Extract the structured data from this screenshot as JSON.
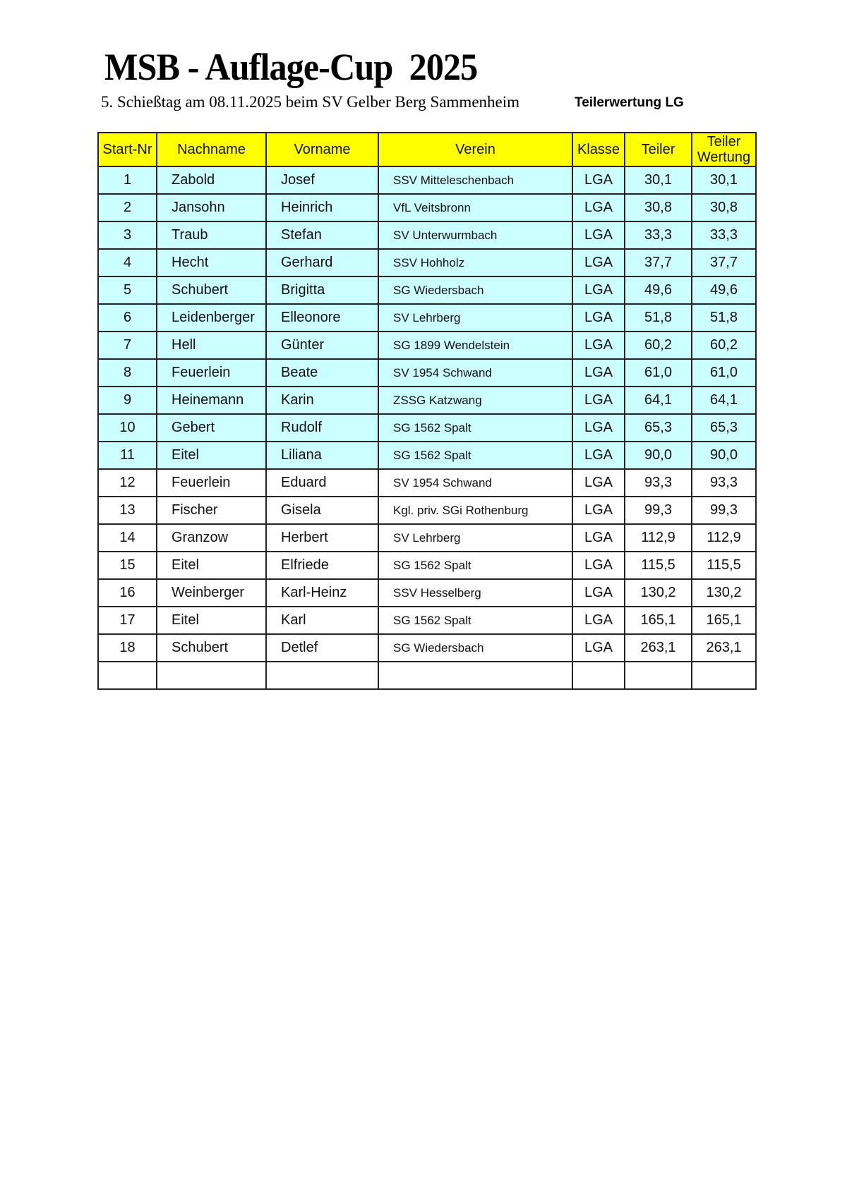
{
  "header": {
    "title": "MSB - Auflage-Cup  2025",
    "subtitle": "5. Schießtag am 08.11.2025 beim SV Gelber Berg Sammenheim",
    "category": "Teilerwertung LG"
  },
  "colors": {
    "header_bg": "#ffff00",
    "highlight_bg": "#ccffff"
  },
  "table": {
    "columns": [
      "Start-Nr",
      "Nachname",
      "Vorname",
      "Verein",
      "Klasse",
      "Teiler",
      "Teiler Wertung"
    ],
    "highlighted_rows": 11,
    "rows": [
      [
        "1",
        "Zabold",
        "Josef",
        "SSV Mitteleschenbach",
        "LGA",
        "30,1",
        "30,1"
      ],
      [
        "2",
        "Jansohn",
        "Heinrich",
        "VfL Veitsbronn",
        "LGA",
        "30,8",
        "30,8"
      ],
      [
        "3",
        "Traub",
        "Stefan",
        "SV Unterwurmbach",
        "LGA",
        "33,3",
        "33,3"
      ],
      [
        "4",
        "Hecht",
        "Gerhard",
        "SSV Hohholz",
        "LGA",
        "37,7",
        "37,7"
      ],
      [
        "5",
        "Schubert",
        "Brigitta",
        "SG Wiedersbach",
        "LGA",
        "49,6",
        "49,6"
      ],
      [
        "6",
        "Leidenberger",
        "Elleonore",
        "SV Lehrberg",
        "LGA",
        "51,8",
        "51,8"
      ],
      [
        "7",
        "Hell",
        "Günter",
        "SG 1899 Wendelstein",
        "LGA",
        "60,2",
        "60,2"
      ],
      [
        "8",
        "Feuerlein",
        "Beate",
        "SV 1954 Schwand",
        "LGA",
        "61,0",
        "61,0"
      ],
      [
        "9",
        "Heinemann",
        "Karin",
        "ZSSG Katzwang",
        "LGA",
        "64,1",
        "64,1"
      ],
      [
        "10",
        "Gebert",
        "Rudolf",
        "SG 1562 Spalt",
        "LGA",
        "65,3",
        "65,3"
      ],
      [
        "11",
        "Eitel",
        "Liliana",
        "SG 1562 Spalt",
        "LGA",
        "90,0",
        "90,0"
      ],
      [
        "12",
        "Feuerlein",
        "Eduard",
        "SV 1954 Schwand",
        "LGA",
        "93,3",
        "93,3"
      ],
      [
        "13",
        "Fischer",
        "Gisela",
        "Kgl. priv. SGi Rothenburg",
        "LGA",
        "99,3",
        "99,3"
      ],
      [
        "14",
        "Granzow",
        "Herbert",
        "SV Lehrberg",
        "LGA",
        "112,9",
        "112,9"
      ],
      [
        "15",
        "Eitel",
        "Elfriede",
        "SG 1562 Spalt",
        "LGA",
        "115,5",
        "115,5"
      ],
      [
        "16",
        "Weinberger",
        "Karl-Heinz",
        "SSV Hesselberg",
        "LGA",
        "130,2",
        "130,2"
      ],
      [
        "17",
        "Eitel",
        "Karl",
        "SG 1562 Spalt",
        "LGA",
        "165,1",
        "165,1"
      ],
      [
        "18",
        "Schubert",
        "Detlef",
        "SG Wiedersbach",
        "LGA",
        "263,1",
        "263,1"
      ],
      [
        "",
        "",
        "",
        "",
        "",
        "",
        ""
      ]
    ]
  }
}
